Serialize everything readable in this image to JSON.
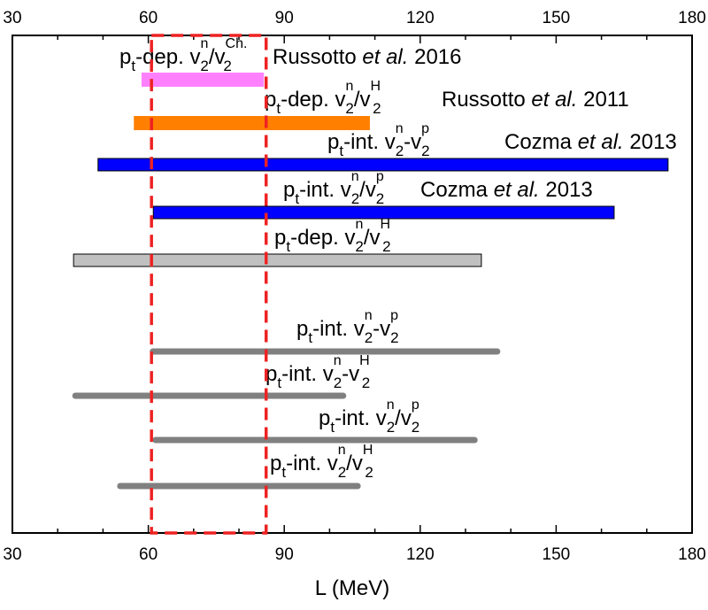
{
  "chart_data": {
    "type": "bar",
    "orientation": "horizontal-range",
    "title": "",
    "xlabel": "L (MeV)",
    "ylabel": "",
    "xlim": [
      30,
      180
    ],
    "xticks": [
      "30",
      "60",
      "90",
      "120",
      "150",
      "180"
    ],
    "top_xticks": [
      "30",
      "60",
      "90",
      "120",
      "150",
      "180"
    ],
    "grid": false,
    "highlight_region": {
      "range": [
        60.7,
        86
      ],
      "style": "red dashed box",
      "color": "#ee2222"
    },
    "series": [
      {
        "name": "pt-dep. v2n/v2Ch. Russotto et al. 2016",
        "range": [
          58.5,
          85.5
        ],
        "color": "#ff80ff",
        "style": "filled",
        "label": [
          [
            "p",
            ""
          ],
          [
            "t",
            "sub"
          ],
          [
            "-dep. v",
            ""
          ],
          [
            "n",
            "sup"
          ],
          [
            "2",
            "sub"
          ],
          [
            "/v",
            ""
          ],
          [
            "Ch.",
            "sup"
          ],
          [
            "2",
            "sub"
          ]
        ],
        "ref": [
          [
            "Russotto ",
            ""
          ],
          [
            "et al.",
            "i"
          ],
          [
            " 2016",
            ""
          ]
        ]
      },
      {
        "name": "pt-dep. v2n/v2H Russotto et al. 2011",
        "range": [
          56.8,
          108.9
        ],
        "color": "#ff8000",
        "style": "filled",
        "label": [
          [
            "p",
            ""
          ],
          [
            "t",
            "sub"
          ],
          [
            "-dep. v",
            ""
          ],
          [
            "n",
            "sup"
          ],
          [
            "2",
            "sub"
          ],
          [
            "/v",
            ""
          ],
          [
            "H",
            "sup"
          ],
          [
            "2",
            "sub"
          ]
        ],
        "ref": [
          [
            "Russotto ",
            ""
          ],
          [
            "et al.",
            "i"
          ],
          [
            " 2011",
            ""
          ]
        ]
      },
      {
        "name": "pt-int. v2n-v2p Cozma et al. 2013",
        "range": [
          48.9,
          174.7
        ],
        "color": "#0000ff",
        "style": "box",
        "label": [
          [
            "p",
            ""
          ],
          [
            "t",
            "sub"
          ],
          [
            "-int. v",
            ""
          ],
          [
            "n",
            "sup"
          ],
          [
            "2",
            "sub"
          ],
          [
            "-v",
            ""
          ],
          [
            "p",
            "sup"
          ],
          [
            "2",
            "sub"
          ]
        ],
        "ref": [
          [
            "Cozma ",
            ""
          ],
          [
            "et al.",
            "i"
          ],
          [
            " 2013",
            ""
          ]
        ]
      },
      {
        "name": "pt-int. v2n/v2p Cozma et al. 2013",
        "range": [
          61.1,
          162.8
        ],
        "color": "#0000ff",
        "style": "box",
        "label": [
          [
            "p",
            ""
          ],
          [
            "t",
            "sub"
          ],
          [
            "-int. v",
            ""
          ],
          [
            "n",
            "sup"
          ],
          [
            "2",
            "sub"
          ],
          [
            "/v",
            ""
          ],
          [
            "p",
            "sup"
          ],
          [
            "2",
            "sub"
          ]
        ],
        "ref": [
          [
            "Cozma ",
            ""
          ],
          [
            "et al.",
            "i"
          ],
          [
            " 2013",
            ""
          ]
        ]
      },
      {
        "name": "pt-dep. v2n/v2H",
        "range": [
          43.5,
          133.5
        ],
        "color": "#c0c0c0",
        "style": "box",
        "label": [
          [
            "p",
            ""
          ],
          [
            "t",
            "sub"
          ],
          [
            "-dep. v",
            ""
          ],
          [
            "n",
            "sup"
          ],
          [
            "2",
            "sub"
          ],
          [
            "/v",
            ""
          ],
          [
            "H",
            "sup"
          ],
          [
            "2",
            "sub"
          ]
        ],
        "ref": []
      },
      {
        "name": "pt-int. v2n-v2p",
        "range": [
          61.0,
          137.0
        ],
        "color": "#808080",
        "style": "line",
        "label": [
          [
            "p",
            ""
          ],
          [
            "t",
            "sub"
          ],
          [
            "-int. v",
            ""
          ],
          [
            "n",
            "sup"
          ],
          [
            "2",
            "sub"
          ],
          [
            "-v",
            ""
          ],
          [
            "p",
            "sup"
          ],
          [
            "2",
            "sub"
          ]
        ],
        "ref": []
      },
      {
        "name": "pt-int. v2n-v2H",
        "range": [
          43.9,
          103.0
        ],
        "color": "#808080",
        "style": "line",
        "label": [
          [
            "p",
            ""
          ],
          [
            "t",
            "sub"
          ],
          [
            "-int. v",
            ""
          ],
          [
            "n",
            "sup"
          ],
          [
            "2",
            "sub"
          ],
          [
            "-v",
            ""
          ],
          [
            "H",
            "sup"
          ],
          [
            "2",
            "sub"
          ]
        ],
        "ref": []
      },
      {
        "name": "pt-int. v2n/v2p",
        "range": [
          61.6,
          132.0
        ],
        "color": "#808080",
        "style": "line",
        "label": [
          [
            "p",
            ""
          ],
          [
            "t",
            "sub"
          ],
          [
            "-int. v",
            ""
          ],
          [
            "n",
            "sup"
          ],
          [
            "2",
            "sub"
          ],
          [
            "/v",
            ""
          ],
          [
            "p",
            "sup"
          ],
          [
            "2",
            "sub"
          ]
        ],
        "ref": []
      },
      {
        "name": "pt-int. v2n/v2H",
        "range": [
          53.8,
          106.2
        ],
        "color": "#808080",
        "style": "line",
        "label": [
          [
            "p",
            ""
          ],
          [
            "t",
            "sub"
          ],
          [
            "-int. v",
            ""
          ],
          [
            "n",
            "sup"
          ],
          [
            "2",
            "sub"
          ],
          [
            "/v",
            ""
          ],
          [
            "H",
            "sup"
          ],
          [
            "2",
            "sub"
          ]
        ],
        "ref": []
      }
    ]
  }
}
